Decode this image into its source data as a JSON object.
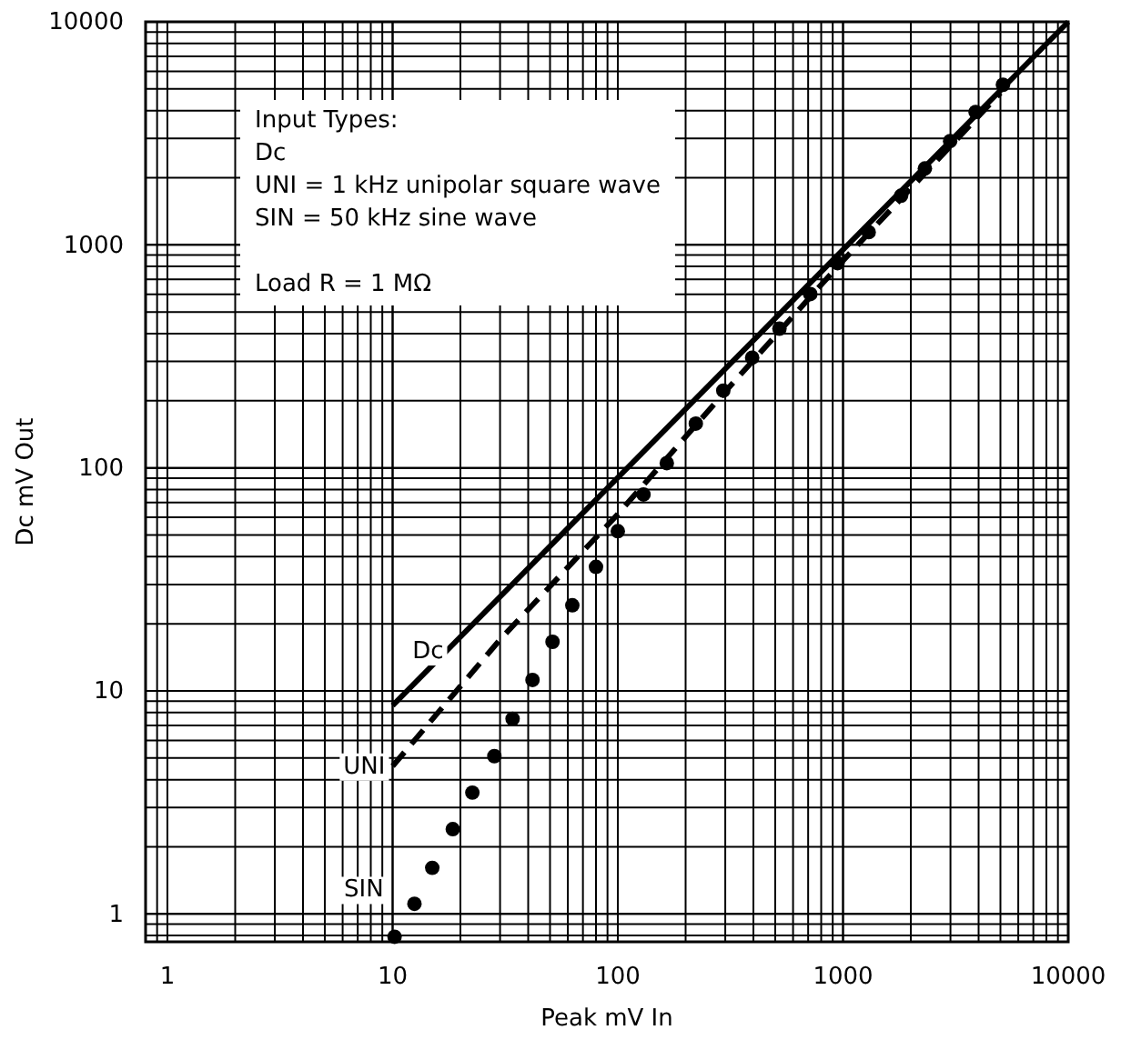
{
  "chart_data": {
    "type": "line",
    "xlabel": "Peak mV In",
    "ylabel": "Dc mV Out",
    "log": "xy",
    "grid": true,
    "xlim": [
      0.8,
      10000
    ],
    "ylim": [
      0.75,
      10000
    ],
    "xticks": [
      1,
      10,
      100,
      1000,
      10000
    ],
    "yticks": [
      1,
      10,
      100,
      1000,
      10000
    ],
    "annotations": [
      "Input Types:",
      "Dc",
      "UNI = 1 kHz unipolar square wave",
      "SIN = 50 kHz sine wave",
      "Load R = 1 MΩ"
    ],
    "series": [
      {
        "name": "Dc",
        "type": "line",
        "line_style": "solid",
        "color": "#000000",
        "x": [
          10,
          10000
        ],
        "values": [
          8.6,
          10000
        ]
      },
      {
        "name": "UNI",
        "type": "line",
        "line_style": "dashed",
        "color": "#000000",
        "x": [
          10,
          30,
          100,
          300,
          1000,
          5000
        ],
        "values": [
          4.6,
          17,
          62,
          220,
          850,
          4800
        ]
      },
      {
        "name": "SIN",
        "type": "scatter",
        "marker": "circle",
        "color": "#000000",
        "x": [
          10.2,
          12.5,
          15,
          18.5,
          22.6,
          28.3,
          34.1,
          41.8,
          51.3,
          62.8,
          80,
          100,
          130,
          165,
          222,
          294,
          395,
          522,
          716,
          946,
          1300,
          1810,
          2310,
          2990,
          3880,
          5130
        ],
        "values": [
          0.79,
          1.11,
          1.61,
          2.4,
          3.5,
          5.1,
          7.5,
          11.2,
          16.6,
          24.2,
          36,
          52,
          76,
          105,
          158,
          222,
          312,
          421,
          602,
          828,
          1140,
          1660,
          2200,
          2920,
          3940,
          5220
        ]
      }
    ]
  }
}
